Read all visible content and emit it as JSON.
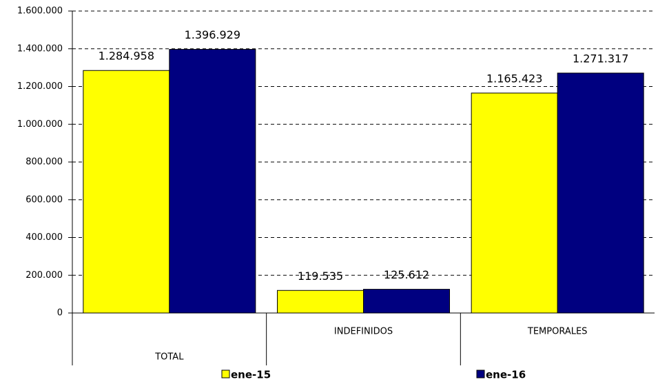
{
  "chart_data": {
    "type": "bar",
    "categories": [
      "TOTAL",
      "INDEFINIDOS",
      "TEMPORALES"
    ],
    "series": [
      {
        "name": "ene-15",
        "color": "#ffff00",
        "values": [
          1284958,
          119535,
          1165423
        ],
        "value_labels": [
          "1.284.958",
          "119.535",
          "1.165.423"
        ]
      },
      {
        "name": "ene-16",
        "color": "#000080",
        "values": [
          1396929,
          125612,
          1271317
        ],
        "value_labels": [
          "1.396.929",
          "125.612",
          "1.271.317"
        ]
      }
    ],
    "ylim": [
      0,
      1600000
    ],
    "yticks": [
      0,
      {
        "value": 200000,
        "label": "200.000"
      },
      {
        "value": 400000,
        "label": "400.000"
      },
      {
        "value": 600000,
        "label": "600.000"
      },
      {
        "value": 800000,
        "label": "800.000"
      },
      {
        "value": 1000000,
        "label": "1.000.000"
      },
      {
        "value": 1200000,
        "label": "1.200.000"
      },
      {
        "value": 1400000,
        "label": "1.400.000"
      },
      {
        "value": 1600000,
        "label": "1.600.000"
      }
    ],
    "grid": true,
    "legend": "bottom"
  }
}
